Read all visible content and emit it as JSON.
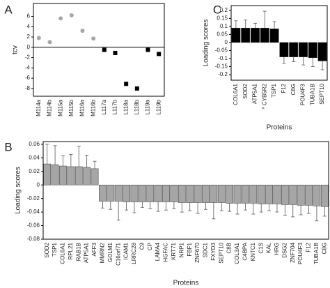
{
  "chart_data": [
    {
      "type": "scatter",
      "panel_label": "A",
      "y_label": "tcv",
      "categories": [
        "M114a",
        "M114b",
        "M115a",
        "M115b",
        "M116a",
        "M116b",
        "L117a",
        "L117b",
        "L118a",
        "L118b",
        "L119a",
        "L119b"
      ],
      "values": [
        1.8,
        1.0,
        5.6,
        6.2,
        3.2,
        1.7,
        -0.5,
        -1.1,
        -7.1,
        -8.0,
        -0.5,
        -1.3
      ],
      "colors": [
        "#a6a6a6",
        "#a6a6a6",
        "#a6a6a6",
        "#a6a6a6",
        "#a6a6a6",
        "#a6a6a6",
        "#000000",
        "#000000",
        "#000000",
        "#000000",
        "#000000",
        "#000000"
      ],
      "markers": [
        "circle",
        "circle",
        "circle",
        "circle",
        "circle",
        "circle",
        "square",
        "square",
        "square",
        "square",
        "square",
        "square"
      ],
      "ylim": [
        -9.5,
        8.5
      ],
      "yticks": [
        6,
        4,
        2,
        0,
        -2,
        -4,
        -6,
        -8
      ],
      "zero_line": true
    },
    {
      "type": "bar",
      "panel_label": "B",
      "y_label": "Loading scores",
      "x_label": "Proteins",
      "color": "#a6a6a6",
      "categories": [
        "SOD2",
        "TSP1",
        "COL6A1",
        "RPL21",
        "RAB1B",
        "ATP5A1",
        "AFF3",
        "MMRN2",
        "GOLM1",
        "C16orf71",
        "ICAM1",
        "LRRC28",
        "C9",
        "CP",
        "LAMA4",
        "HGFAC",
        "KRT71",
        "NRP1",
        "FBF1",
        "ZNF670",
        "SDC1",
        "FXYD3",
        "SEPT10",
        "C8B",
        "COL3A1",
        "C4BPA",
        "KNTC1",
        "C1S",
        "KAL",
        "HRG",
        "DSG2",
        "ZNF704",
        "POU4F3",
        "F12",
        "TUBA1B",
        "C8G"
      ],
      "values": [
        0.031,
        0.03,
        0.028,
        0.027,
        0.027,
        0.026,
        0.024,
        -0.024,
        -0.024,
        -0.024,
        -0.025,
        -0.025,
        -0.025,
        -0.025,
        -0.025,
        -0.025,
        -0.025,
        -0.026,
        -0.026,
        -0.026,
        -0.026,
        -0.026,
        -0.026,
        -0.027,
        -0.027,
        -0.027,
        -0.027,
        -0.028,
        -0.028,
        -0.028,
        -0.029,
        -0.029,
        -0.03,
        -0.03,
        -0.031,
        -0.032
      ],
      "errors": [
        0.029,
        0.028,
        0.015,
        0.018,
        0.03,
        0.018,
        0.011,
        0.01,
        0.012,
        0.028,
        0.012,
        0.016,
        0.008,
        0.01,
        0.014,
        0.012,
        0.01,
        0.014,
        0.012,
        0.016,
        0.01,
        0.024,
        0.012,
        0.012,
        0.016,
        0.01,
        0.016,
        0.012,
        0.01,
        0.012,
        0.016,
        0.018,
        0.014,
        0.012,
        0.022,
        0.014
      ],
      "ylim": [
        -0.08,
        0.064
      ],
      "yticks": [
        0.06,
        0.04,
        0.02,
        0,
        -0.02,
        -0.04,
        -0.06,
        -0.08
      ]
    },
    {
      "type": "bar",
      "panel_label": "C",
      "y_label": "Loading scores",
      "x_label": "Proteins",
      "color": "#000000",
      "categories": [
        "COL6A1",
        "SOD2",
        "ATP5A1",
        "* CYB5R2",
        "TSP1",
        "F12",
        "C8G",
        "POU4F3",
        "TUBA1B",
        "SEPT10"
      ],
      "values": [
        0.09,
        0.09,
        0.09,
        0.09,
        0.085,
        -0.09,
        -0.09,
        -0.09,
        -0.095,
        -0.115
      ],
      "errors": [
        0.045,
        0.05,
        0.03,
        0.105,
        0.045,
        0.04,
        0.03,
        0.05,
        0.055,
        0.055
      ],
      "ylim": [
        -0.235,
        0.23
      ],
      "yticks": [
        0.2,
        0.15,
        0.1,
        0.05,
        0,
        -0.05,
        -0.1,
        -0.15,
        -0.2
      ]
    }
  ]
}
